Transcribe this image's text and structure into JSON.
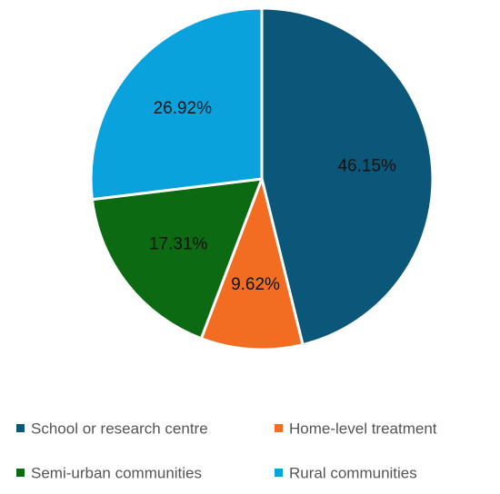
{
  "chart_data": {
    "type": "pie",
    "title": "",
    "series": [
      {
        "values": [
          {
            "label": "School or research centre",
            "value": 46.15,
            "display": "46.15%",
            "color": "#0b5779"
          },
          {
            "label": "Home-level treatment",
            "value": 9.62,
            "display": "9.62%",
            "color": "#f26d21"
          },
          {
            "label": "Semi-urban communities",
            "value": 17.31,
            "display": "17.31%",
            "color": "#0c6a13"
          },
          {
            "label": "Rural communities",
            "value": 26.92,
            "display": "26.92%",
            "color": "#0aa2dc"
          }
        ]
      }
    ],
    "legend": {
      "position": "bottom",
      "items": [
        "School or research centre",
        "Home-level treatment",
        "Semi-urban communities",
        "Rural communities"
      ]
    },
    "start_angle_deg": 0,
    "direction": "clockwise"
  }
}
